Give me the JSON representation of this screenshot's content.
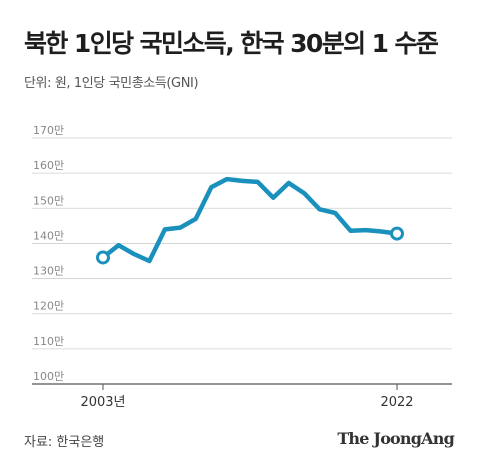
{
  "title": "북한 1인당 국민소득, 한국 30분의 1 수준",
  "subtitle": "단위: 원, 1인당 국민총소득(GNI)",
  "source": "자료: 한국은행",
  "brand": "The JoongAng",
  "colors": {
    "line": "#1a90bd",
    "grid": "#cfcfcf",
    "axis": "#555555",
    "marker_fill": "#ffffff"
  },
  "chart_data": {
    "type": "line",
    "title": "북한 1인당 국민소득, 한국 30분의 1 수준",
    "xlabel": "",
    "ylabel": "단위: 원, 1인당 국민총소득(GNI)",
    "ylim": [
      100,
      170
    ],
    "xlim": [
      2003,
      2022
    ],
    "y_ticks": [
      100,
      110,
      120,
      130,
      140,
      150,
      160,
      170
    ],
    "y_tick_labels": [
      "100만",
      "110만",
      "120만",
      "130만",
      "140만",
      "150만",
      "160만",
      "170만"
    ],
    "x_tick_labels": [
      {
        "x": 2003,
        "label": "2003년"
      },
      {
        "x": 2022,
        "label": "2022"
      }
    ],
    "unit": "만원",
    "grid": true,
    "series": [
      {
        "x": [
          2003,
          2004,
          2005,
          2006,
          2007,
          2008,
          2009,
          2010,
          2011,
          2012,
          2013,
          2014,
          2015,
          2016,
          2017,
          2018,
          2019,
          2020,
          2021,
          2022
        ],
        "values": [
          136,
          139.5,
          137,
          135,
          144,
          144.5,
          147,
          156,
          158.3,
          157.8,
          157.5,
          153,
          157.2,
          154.3,
          149.7,
          148.7,
          143.6,
          143.8,
          143.4,
          142.8
        ],
        "markers": [
          2003,
          2022
        ]
      }
    ]
  }
}
